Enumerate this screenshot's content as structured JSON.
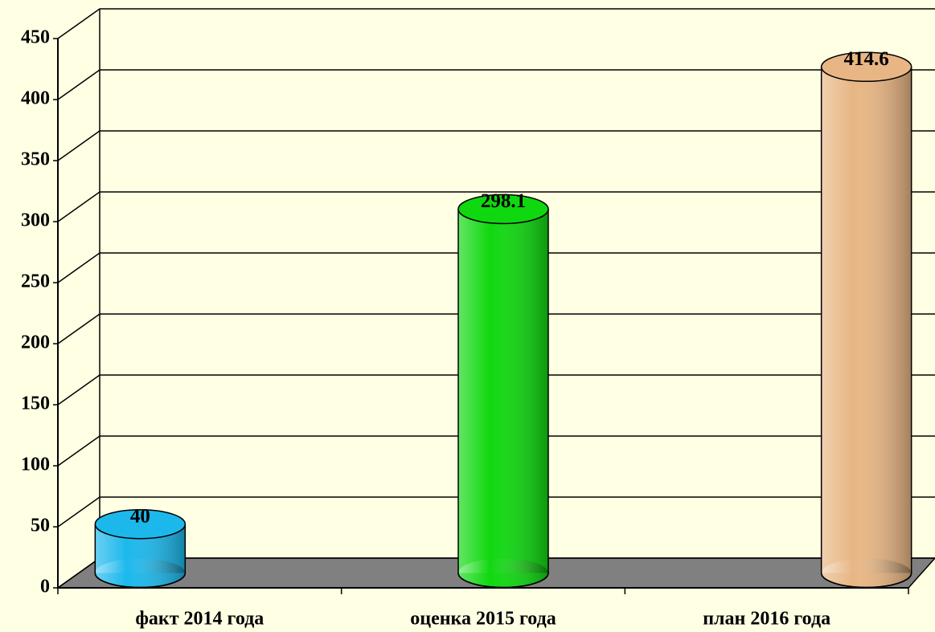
{
  "chart_data": {
    "type": "bar",
    "categories": [
      "факт 2014 года",
      "оценка 2015 года",
      "план 2016 года"
    ],
    "values": [
      40,
      298.1,
      414.6
    ],
    "colors": [
      "#1cb8ec",
      "#10d810",
      "#e8b684"
    ],
    "ylim": [
      0,
      450
    ],
    "yticks": [
      0,
      50,
      100,
      150,
      200,
      250,
      300,
      350,
      400,
      450
    ],
    "grid": true
  }
}
